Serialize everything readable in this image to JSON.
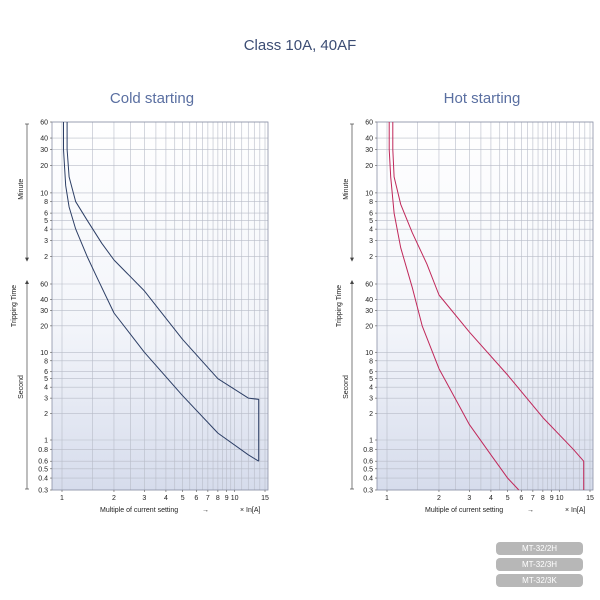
{
  "title": "Class 10A, 40AF",
  "colors": {
    "cold_curve": "#2d3f66",
    "hot_curve": "#c0285a",
    "title": "#3c4d74",
    "grid": "#b8bcc8",
    "badge": "#b7b7b7"
  },
  "axis_common": {
    "ylabel": "Tripping Time",
    "y_group_minute": "Minute",
    "y_group_second": "Second",
    "xlabel": "Multiple of current setting",
    "x_unit": "× In[A]",
    "arrow": "→",
    "x_ticks": [
      "1",
      "2",
      "3",
      "4",
      "5",
      "6",
      "7",
      "8",
      "9",
      "10",
      "15"
    ],
    "y_ticks_minute": [
      "2",
      "3",
      "4",
      "5",
      "6",
      "8",
      "10",
      "20",
      "30",
      "40",
      "60"
    ],
    "y_ticks_second": [
      "0.3",
      "0.4",
      "0.5",
      "0.6",
      "0.8",
      "1",
      "2",
      "3",
      "4",
      "5",
      "6",
      "8",
      "10",
      "20",
      "30",
      "40",
      "60"
    ],
    "x_scale": "log",
    "y_scale": "log",
    "grid": true
  },
  "chart_data": [
    {
      "type": "line",
      "title": "Cold starting",
      "xlim": [
        1,
        15
      ],
      "ylim_seconds": [
        0.3,
        3600
      ],
      "series": [
        {
          "x": [
            1.07,
            1.07,
            1.1,
            1.2,
            1.4,
            1.7,
            2.0,
            3.0,
            5.0,
            8.0,
            12.0,
            13.8,
            13.8
          ],
          "y_seconds": [
            3600,
            1800,
            900,
            480,
            300,
            168,
            110,
            50,
            14,
            5,
            3,
            2.9,
            0.6
          ]
        },
        {
          "x": [
            1.02,
            1.02,
            1.05,
            1.1,
            1.2,
            1.4,
            1.6,
            2.0,
            3.0,
            5.0,
            8.0,
            12.0,
            13.8
          ],
          "y_seconds": [
            3600,
            1800,
            720,
            420,
            240,
            120,
            70,
            28,
            10,
            3.2,
            1.2,
            0.7,
            0.6
          ]
        }
      ]
    },
    {
      "type": "line",
      "title": "Hot starting",
      "xlim": [
        1,
        15
      ],
      "ylim_seconds": [
        0.3,
        3600
      ],
      "series": [
        {
          "x": [
            1.08,
            1.08,
            1.1,
            1.2,
            1.4,
            1.7,
            2.0,
            3.0,
            5.0,
            8.0,
            12.0,
            13.8,
            13.8
          ],
          "y_seconds": [
            3600,
            1800,
            900,
            450,
            220,
            100,
            45,
            17,
            5.5,
            1.8,
            0.8,
            0.6,
            0.3
          ]
        },
        {
          "x": [
            1.03,
            1.03,
            1.05,
            1.1,
            1.2,
            1.4,
            1.6,
            2.0,
            3.0,
            4.0,
            5.0,
            5.8
          ],
          "y_seconds": [
            3600,
            1800,
            900,
            360,
            150,
            55,
            20,
            6.5,
            1.5,
            0.7,
            0.4,
            0.3
          ]
        }
      ]
    }
  ],
  "badges": [
    "MT-32/2H",
    "MT-32/3H",
    "MT-32/3K"
  ]
}
